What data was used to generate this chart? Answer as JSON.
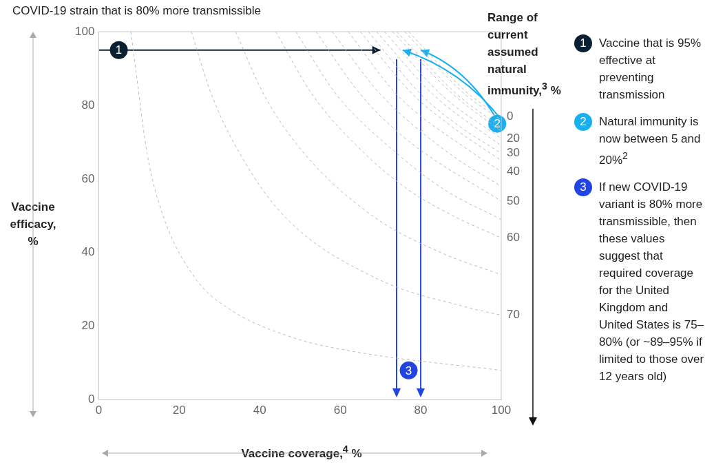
{
  "chart_data": {
    "type": "line",
    "title": "COVID-19 strain that is 80% more transmissible",
    "xlabel": "Vaccine coverage,$^{4}$ %",
    "ylabel": "Vaccine efficacy, %",
    "legend_title": "Range of current assumed natural immunity,$^{3}$ %",
    "xlim": [
      0,
      100
    ],
    "ylim": [
      0,
      100
    ],
    "xticks": [
      0,
      20,
      40,
      60,
      80,
      100
    ],
    "yticks": [
      0,
      20,
      40,
      60,
      80,
      100
    ],
    "line_style": "dashed",
    "marker": "none",
    "series": [
      {
        "name": "0",
        "color": "#bbbbbb",
        "x": [
          77,
          92,
          100
        ],
        "values": [
          100,
          83,
          77
        ]
      },
      {
        "color": "#bbbbbb",
        "x": [
          76,
          91,
          100
        ],
        "values": [
          100,
          83,
          76
        ]
      },
      {
        "color": "#bbbbbb",
        "x": [
          74,
          89,
          100
        ],
        "values": [
          100,
          83,
          74
        ]
      },
      {
        "color": "#bbbbbb",
        "x": [
          73,
          88,
          100
        ],
        "values": [
          100,
          83,
          73
        ]
      },
      {
        "name": "20",
        "color": "#bbbbbb",
        "x": [
          71,
          85,
          100
        ],
        "values": [
          100,
          83,
          71
        ]
      },
      {
        "color": "#bbbbbb",
        "x": [
          69,
          83,
          100
        ],
        "values": [
          100,
          83,
          69
        ]
      },
      {
        "name": "30",
        "color": "#bbbbbb",
        "x": [
          67,
          80,
          90,
          100
        ],
        "values": [
          100,
          83,
          74,
          67
        ]
      },
      {
        "color": "#bbbbbb",
        "x": [
          65,
          78,
          88,
          100
        ],
        "values": [
          100,
          83,
          74,
          65
        ]
      },
      {
        "name": "40",
        "color": "#bbbbbb",
        "x": [
          62,
          74,
          93,
          100
        ],
        "values": [
          100,
          83,
          67,
          62
        ]
      },
      {
        "color": "#bbbbbb",
        "x": [
          58,
          70,
          87,
          100
        ],
        "values": [
          100,
          83,
          67,
          58
        ]
      },
      {
        "name": "50",
        "color": "#bbbbbb",
        "x": [
          54,
          65,
          73,
          81,
          100
        ],
        "values": [
          100,
          83,
          74,
          67,
          54
        ]
      },
      {
        "color": "#bbbbbb",
        "x": [
          49,
          59,
          74,
          86,
          100
        ],
        "values": [
          100,
          83,
          67,
          57,
          49
        ]
      },
      {
        "name": "60",
        "color": "#bbbbbb",
        "x": [
          44,
          53,
          66,
          77,
          88,
          100
        ],
        "values": [
          100,
          83,
          67,
          57,
          50,
          44
        ]
      },
      {
        "color": "#bbbbbb",
        "x": [
          34,
          41,
          51,
          68,
          85,
          100
        ],
        "values": [
          100,
          83,
          67,
          50,
          40,
          34
        ]
      },
      {
        "name": "70",
        "color": "#bbbbbb",
        "x": [
          23,
          28,
          35,
          46,
          69,
          92,
          100
        ],
        "values": [
          100,
          83,
          67,
          50,
          33,
          25,
          23
        ]
      },
      {
        "color": "#bbbbbb",
        "x": [
          8,
          10,
          12,
          16,
          24,
          32,
          48,
          64,
          100
        ],
        "values": [
          100,
          83,
          67,
          50,
          33,
          25,
          17,
          13,
          8
        ]
      }
    ],
    "ref_lines": [
      {
        "axis": "x",
        "value": 74,
        "color": "#2244e0"
      },
      {
        "axis": "x",
        "value": 80,
        "color": "#2244e0"
      }
    ],
    "annotations": [
      {
        "text": "1",
        "x": 5,
        "y": 95
      },
      {
        "text": "2",
        "x": 99,
        "y": 75
      },
      {
        "text": "3",
        "x": 77,
        "y": 8
      },
      "Vaccine that is 95% effective at preventing transmission",
      "Natural immunity is now between 5 and 20%$^{2}$",
      "If new COVID-19 variant is 80% more transmissible, then these values suggest that required coverage for the United Kingdom and United States is 75–80% (or ~89–95% if limited to those over 12 years old)"
    ]
  }
}
